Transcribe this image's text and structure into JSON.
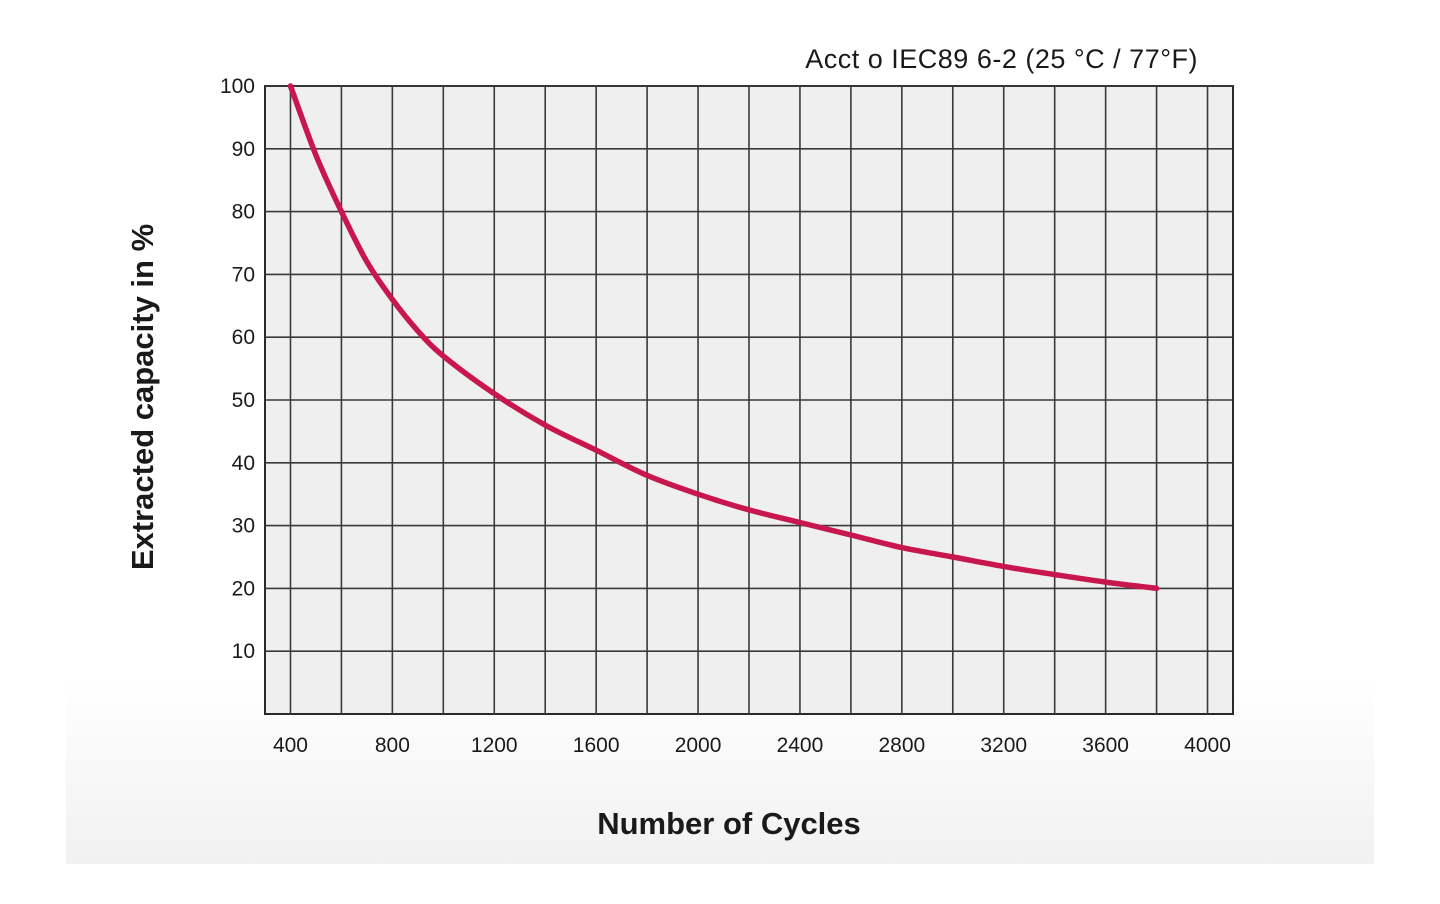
{
  "chart_data": {
    "type": "line",
    "title": "Acct o IEC89  6-2 (25 °C / 77°F)",
    "xlabel": "Number of Cycles",
    "ylabel": "Extracted capacity in %",
    "xlim": [
      300,
      4100
    ],
    "ylim": [
      0,
      100
    ],
    "x_ticks": [
      400,
      800,
      1200,
      1600,
      2000,
      2400,
      2800,
      3200,
      3600,
      4000
    ],
    "y_ticks": [
      10,
      20,
      30,
      40,
      50,
      60,
      70,
      80,
      90,
      100
    ],
    "grid": true,
    "series": [
      {
        "color": "#c8174f",
        "x": [
          400,
          500,
          600,
          700,
          800,
          900,
          1000,
          1200,
          1400,
          1600,
          1800,
          2000,
          2200,
          2400,
          2600,
          2800,
          3000,
          3200,
          3400,
          3600,
          3800
        ],
        "y": [
          100,
          89,
          80,
          72,
          66,
          61,
          57,
          51,
          46,
          42,
          38,
          35,
          32.5,
          30.5,
          28.5,
          26.5,
          25,
          23.5,
          22.2,
          21,
          20
        ]
      }
    ]
  }
}
